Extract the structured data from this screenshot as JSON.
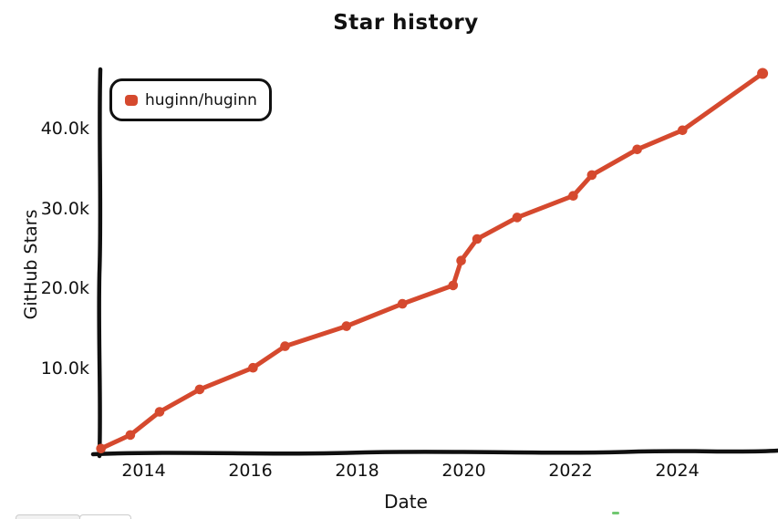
{
  "colors": {
    "series": "#d5492e",
    "axis": "#101010",
    "text": "#111111",
    "background": "#ffffff",
    "artifact_green": "#70c870",
    "artifact_button_border": "#cccccc"
  },
  "chart_data": {
    "type": "line",
    "title": "Star history",
    "xlabel": "Date",
    "ylabel": "GitHub Stars",
    "legend_position": "top-left",
    "grid": false,
    "xlim": [
      2013.1,
      2025.95
    ],
    "ylim": [
      0,
      47500
    ],
    "x_ticks": [
      {
        "label": "2014",
        "value": 2014
      },
      {
        "label": "2016",
        "value": 2016
      },
      {
        "label": "2018",
        "value": 2018
      },
      {
        "label": "2020",
        "value": 2020
      },
      {
        "label": "2022",
        "value": 2022
      },
      {
        "label": "2024",
        "value": 2024
      }
    ],
    "y_ticks": [
      {
        "label": "10.0k",
        "value": 10000
      },
      {
        "label": "20.0k",
        "value": 20000
      },
      {
        "label": "30.0k",
        "value": 30000
      },
      {
        "label": "40.0k",
        "value": 40000
      }
    ],
    "series": [
      {
        "name": "huginn/huginn",
        "color": "#d5492e",
        "marker": "dot",
        "x": [
          2013.2,
          2013.75,
          2014.3,
          2015.05,
          2016.05,
          2016.65,
          2017.8,
          2018.85,
          2019.8,
          2019.95,
          2020.25,
          2021.0,
          2022.05,
          2022.4,
          2023.25,
          2024.1,
          2025.6
        ],
        "y": [
          100,
          1800,
          4700,
          7500,
          10200,
          12900,
          15400,
          18200,
          20500,
          23600,
          26300,
          29000,
          31700,
          34300,
          37500,
          39900,
          47000
        ]
      }
    ]
  }
}
